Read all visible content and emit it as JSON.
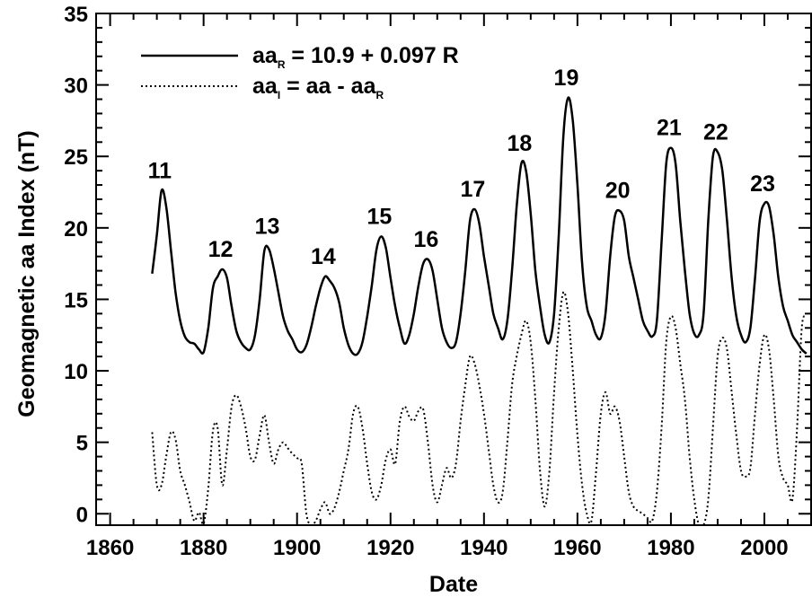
{
  "chart_data": {
    "type": "line",
    "xlabel": "Date",
    "ylabel": "Geomagnetic aa Index (nT)",
    "xlim": [
      1857,
      2010
    ],
    "ylim": [
      -0.8,
      35
    ],
    "xticks": [
      1860,
      1880,
      1900,
      1920,
      1940,
      1960,
      1980,
      2000
    ],
    "yticks": [
      0,
      5,
      10,
      15,
      20,
      25,
      30,
      35
    ],
    "grid": false,
    "legend_position": "top-left",
    "legend": [
      {
        "main": "aa",
        "sub": "R",
        "rest": " = 10.9 + 0.097 R",
        "style": "solid"
      },
      {
        "main": "aa",
        "sub": "I",
        "rest": " = aa - aa",
        "sub2": "R",
        "style": "dotted"
      }
    ],
    "series": [
      {
        "id": "aaR",
        "style": "solid",
        "points": [
          [
            1869,
            16.8
          ],
          [
            1870,
            19.5
          ],
          [
            1871,
            22.6
          ],
          [
            1872,
            21.5
          ],
          [
            1873,
            18.5
          ],
          [
            1874,
            15.5
          ],
          [
            1875,
            13.5
          ],
          [
            1876,
            12.4
          ],
          [
            1877,
            12.0
          ],
          [
            1878,
            11.9
          ],
          [
            1879,
            11.5
          ],
          [
            1880,
            11.3
          ],
          [
            1881,
            13.0
          ],
          [
            1882,
            15.8
          ],
          [
            1883,
            16.6
          ],
          [
            1884,
            17.1
          ],
          [
            1885,
            16.5
          ],
          [
            1886,
            14.5
          ],
          [
            1887,
            12.8
          ],
          [
            1888,
            12.0
          ],
          [
            1889,
            11.6
          ],
          [
            1890,
            11.5
          ],
          [
            1891,
            12.5
          ],
          [
            1892,
            15.0
          ],
          [
            1893,
            18.4
          ],
          [
            1894,
            18.5
          ],
          [
            1895,
            17.2
          ],
          [
            1896,
            15.5
          ],
          [
            1897,
            13.8
          ],
          [
            1898,
            12.8
          ],
          [
            1899,
            12.2
          ],
          [
            1900,
            11.5
          ],
          [
            1901,
            11.3
          ],
          [
            1902,
            11.8
          ],
          [
            1903,
            13.0
          ],
          [
            1904,
            14.5
          ],
          [
            1905,
            15.8
          ],
          [
            1906,
            16.6
          ],
          [
            1907,
            16.3
          ],
          [
            1908,
            15.8
          ],
          [
            1909,
            14.8
          ],
          [
            1910,
            13.0
          ],
          [
            1911,
            11.8
          ],
          [
            1912,
            11.2
          ],
          [
            1913,
            11.2
          ],
          [
            1914,
            12.0
          ],
          [
            1915,
            13.8
          ],
          [
            1916,
            16.0
          ],
          [
            1917,
            18.5
          ],
          [
            1918,
            19.4
          ],
          [
            1919,
            18.6
          ],
          [
            1920,
            16.5
          ],
          [
            1921,
            14.5
          ],
          [
            1922,
            13.0
          ],
          [
            1923,
            11.9
          ],
          [
            1924,
            12.5
          ],
          [
            1925,
            14.0
          ],
          [
            1926,
            16.0
          ],
          [
            1927,
            17.5
          ],
          [
            1928,
            17.8
          ],
          [
            1929,
            17.0
          ],
          [
            1930,
            15.0
          ],
          [
            1931,
            13.0
          ],
          [
            1932,
            12.0
          ],
          [
            1933,
            11.6
          ],
          [
            1934,
            12.0
          ],
          [
            1935,
            14.0
          ],
          [
            1936,
            17.0
          ],
          [
            1937,
            20.5
          ],
          [
            1938,
            21.3
          ],
          [
            1939,
            20.3
          ],
          [
            1940,
            18.0
          ],
          [
            1941,
            16.0
          ],
          [
            1942,
            14.0
          ],
          [
            1943,
            13.0
          ],
          [
            1944,
            12.2
          ],
          [
            1945,
            13.5
          ],
          [
            1946,
            17.0
          ],
          [
            1947,
            21.5
          ],
          [
            1948,
            24.5
          ],
          [
            1949,
            24.0
          ],
          [
            1950,
            21.0
          ],
          [
            1951,
            17.0
          ],
          [
            1952,
            14.5
          ],
          [
            1953,
            12.5
          ],
          [
            1954,
            12.0
          ],
          [
            1955,
            14.0
          ],
          [
            1956,
            19.5
          ],
          [
            1957,
            26.5
          ],
          [
            1958,
            29.1
          ],
          [
            1959,
            27.5
          ],
          [
            1960,
            23.0
          ],
          [
            1961,
            17.5
          ],
          [
            1962,
            14.5
          ],
          [
            1963,
            13.5
          ],
          [
            1964,
            12.5
          ],
          [
            1965,
            12.3
          ],
          [
            1966,
            14.0
          ],
          [
            1967,
            18.0
          ],
          [
            1968,
            20.8
          ],
          [
            1969,
            21.2
          ],
          [
            1970,
            20.5
          ],
          [
            1971,
            18.0
          ],
          [
            1972,
            16.5
          ],
          [
            1973,
            15.0
          ],
          [
            1974,
            13.5
          ],
          [
            1975,
            12.8
          ],
          [
            1976,
            12.4
          ],
          [
            1977,
            13.5
          ],
          [
            1978,
            19.0
          ],
          [
            1979,
            24.5
          ],
          [
            1980,
            25.6
          ],
          [
            1981,
            24.5
          ],
          [
            1982,
            20.5
          ],
          [
            1983,
            17.0
          ],
          [
            1984,
            14.0
          ],
          [
            1985,
            12.6
          ],
          [
            1986,
            12.5
          ],
          [
            1987,
            14.0
          ],
          [
            1988,
            20.5
          ],
          [
            1989,
            25.0
          ],
          [
            1990,
            25.3
          ],
          [
            1991,
            24.0
          ],
          [
            1992,
            20.5
          ],
          [
            1993,
            16.5
          ],
          [
            1994,
            13.8
          ],
          [
            1995,
            12.5
          ],
          [
            1996,
            12.0
          ],
          [
            1997,
            13.0
          ],
          [
            1998,
            16.5
          ],
          [
            1999,
            20.5
          ],
          [
            2000,
            21.7
          ],
          [
            2001,
            21.5
          ],
          [
            2002,
            19.5
          ],
          [
            2003,
            16.5
          ],
          [
            2004,
            14.5
          ],
          [
            2005,
            13.5
          ],
          [
            2006,
            12.5
          ],
          [
            2007,
            12.0
          ],
          [
            2008,
            11.5
          ],
          [
            2009,
            11.2
          ]
        ]
      },
      {
        "id": "aaI",
        "style": "dotted",
        "points": [
          [
            1869,
            5.7
          ],
          [
            1870,
            2.0
          ],
          [
            1871,
            2.0
          ],
          [
            1872,
            4.0
          ],
          [
            1873,
            5.7
          ],
          [
            1874,
            5.2
          ],
          [
            1875,
            3.0
          ],
          [
            1876,
            2.0
          ],
          [
            1877,
            0.8
          ],
          [
            1878,
            -0.5
          ],
          [
            1879,
            0.1
          ],
          [
            1880,
            -0.7
          ],
          [
            1881,
            1.8
          ],
          [
            1882,
            5.8
          ],
          [
            1883,
            6.0
          ],
          [
            1884,
            2.0
          ],
          [
            1885,
            4.5
          ],
          [
            1886,
            7.5
          ],
          [
            1887,
            8.3
          ],
          [
            1888,
            7.5
          ],
          [
            1889,
            6.0
          ],
          [
            1890,
            4.0
          ],
          [
            1891,
            3.8
          ],
          [
            1892,
            5.5
          ],
          [
            1893,
            6.9
          ],
          [
            1894,
            5.0
          ],
          [
            1895,
            3.5
          ],
          [
            1896,
            4.5
          ],
          [
            1897,
            5.0
          ],
          [
            1898,
            4.6
          ],
          [
            1899,
            4.2
          ],
          [
            1900,
            3.9
          ],
          [
            1901,
            3.5
          ],
          [
            1902,
            0.0
          ],
          [
            1903,
            -0.8
          ],
          [
            1904,
            -0.5
          ],
          [
            1905,
            0.3
          ],
          [
            1906,
            0.8
          ],
          [
            1907,
            0.0
          ],
          [
            1908,
            0.4
          ],
          [
            1909,
            1.5
          ],
          [
            1910,
            3.0
          ],
          [
            1911,
            4.5
          ],
          [
            1912,
            7.0
          ],
          [
            1913,
            7.5
          ],
          [
            1914,
            6.0
          ],
          [
            1915,
            3.5
          ],
          [
            1916,
            1.5
          ],
          [
            1917,
            1.0
          ],
          [
            1918,
            2.0
          ],
          [
            1919,
            3.8
          ],
          [
            1920,
            4.5
          ],
          [
            1921,
            3.5
          ],
          [
            1922,
            6.5
          ],
          [
            1923,
            7.5
          ],
          [
            1924,
            6.8
          ],
          [
            1925,
            6.5
          ],
          [
            1926,
            7.2
          ],
          [
            1927,
            7.3
          ],
          [
            1928,
            5.0
          ],
          [
            1929,
            2.0
          ],
          [
            1930,
            0.8
          ],
          [
            1931,
            2.0
          ],
          [
            1932,
            3.2
          ],
          [
            1933,
            2.5
          ],
          [
            1934,
            3.5
          ],
          [
            1935,
            6.5
          ],
          [
            1936,
            9.0
          ],
          [
            1937,
            11.0
          ],
          [
            1938,
            10.5
          ],
          [
            1939,
            9.0
          ],
          [
            1940,
            7.0
          ],
          [
            1941,
            4.5
          ],
          [
            1942,
            2.0
          ],
          [
            1943,
            0.8
          ],
          [
            1944,
            1.5
          ],
          [
            1945,
            5.0
          ],
          [
            1946,
            9.0
          ],
          [
            1947,
            11.0
          ],
          [
            1948,
            12.5
          ],
          [
            1949,
            13.5
          ],
          [
            1950,
            12.0
          ],
          [
            1951,
            8.0
          ],
          [
            1952,
            3.0
          ],
          [
            1953,
            0.5
          ],
          [
            1954,
            3.0
          ],
          [
            1955,
            8.5
          ],
          [
            1956,
            13.0
          ],
          [
            1957,
            15.5
          ],
          [
            1958,
            14.0
          ],
          [
            1959,
            10.0
          ],
          [
            1960,
            5.5
          ],
          [
            1961,
            2.0
          ],
          [
            1962,
            0.0
          ],
          [
            1963,
            -0.5
          ],
          [
            1964,
            3.0
          ],
          [
            1965,
            7.0
          ],
          [
            1966,
            8.5
          ],
          [
            1967,
            7.0
          ],
          [
            1968,
            7.5
          ],
          [
            1969,
            6.5
          ],
          [
            1970,
            4.0
          ],
          [
            1971,
            1.5
          ],
          [
            1972,
            0.5
          ],
          [
            1973,
            0.2
          ],
          [
            1974,
            0.0
          ],
          [
            1975,
            -0.3
          ],
          [
            1976,
            -0.5
          ],
          [
            1977,
            1.5
          ],
          [
            1978,
            6.0
          ],
          [
            1979,
            12.0
          ],
          [
            1980,
            13.8
          ],
          [
            1981,
            13.0
          ],
          [
            1982,
            10.5
          ],
          [
            1983,
            8.0
          ],
          [
            1984,
            4.0
          ],
          [
            1985,
            1.0
          ],
          [
            1986,
            -0.8
          ],
          [
            1987,
            -0.8
          ],
          [
            1988,
            1.0
          ],
          [
            1989,
            6.0
          ],
          [
            1990,
            11.0
          ],
          [
            1991,
            12.3
          ],
          [
            1992,
            11.5
          ],
          [
            1993,
            8.5
          ],
          [
            1994,
            5.5
          ],
          [
            1995,
            3.0
          ],
          [
            1996,
            2.6
          ],
          [
            1997,
            3.2
          ],
          [
            1998,
            7.0
          ],
          [
            1999,
            10.5
          ],
          [
            2000,
            12.5
          ],
          [
            2001,
            11.5
          ],
          [
            2002,
            8.0
          ],
          [
            2003,
            4.0
          ],
          [
            2004,
            2.5
          ],
          [
            2005,
            2.0
          ],
          [
            2006,
            1.0
          ],
          [
            2007,
            6.0
          ],
          [
            2008,
            13.0
          ],
          [
            2009,
            13.8
          ]
        ]
      }
    ],
    "annotations": [
      {
        "text": "11",
        "x": 1871,
        "y": 22.6
      },
      {
        "text": "12",
        "x": 1884,
        "y": 17.1
      },
      {
        "text": "13",
        "x": 1894,
        "y": 18.7
      },
      {
        "text": "14",
        "x": 1906,
        "y": 16.6
      },
      {
        "text": "15",
        "x": 1918,
        "y": 19.4
      },
      {
        "text": "16",
        "x": 1928,
        "y": 17.8
      },
      {
        "text": "17",
        "x": 1938,
        "y": 21.3
      },
      {
        "text": "18",
        "x": 1948,
        "y": 24.5
      },
      {
        "text": "19",
        "x": 1958,
        "y": 29.1
      },
      {
        "text": "20",
        "x": 1969,
        "y": 21.2
      },
      {
        "text": "21",
        "x": 1980,
        "y": 25.6
      },
      {
        "text": "22",
        "x": 1990,
        "y": 25.3
      },
      {
        "text": "23",
        "x": 2000,
        "y": 21.7
      }
    ]
  }
}
